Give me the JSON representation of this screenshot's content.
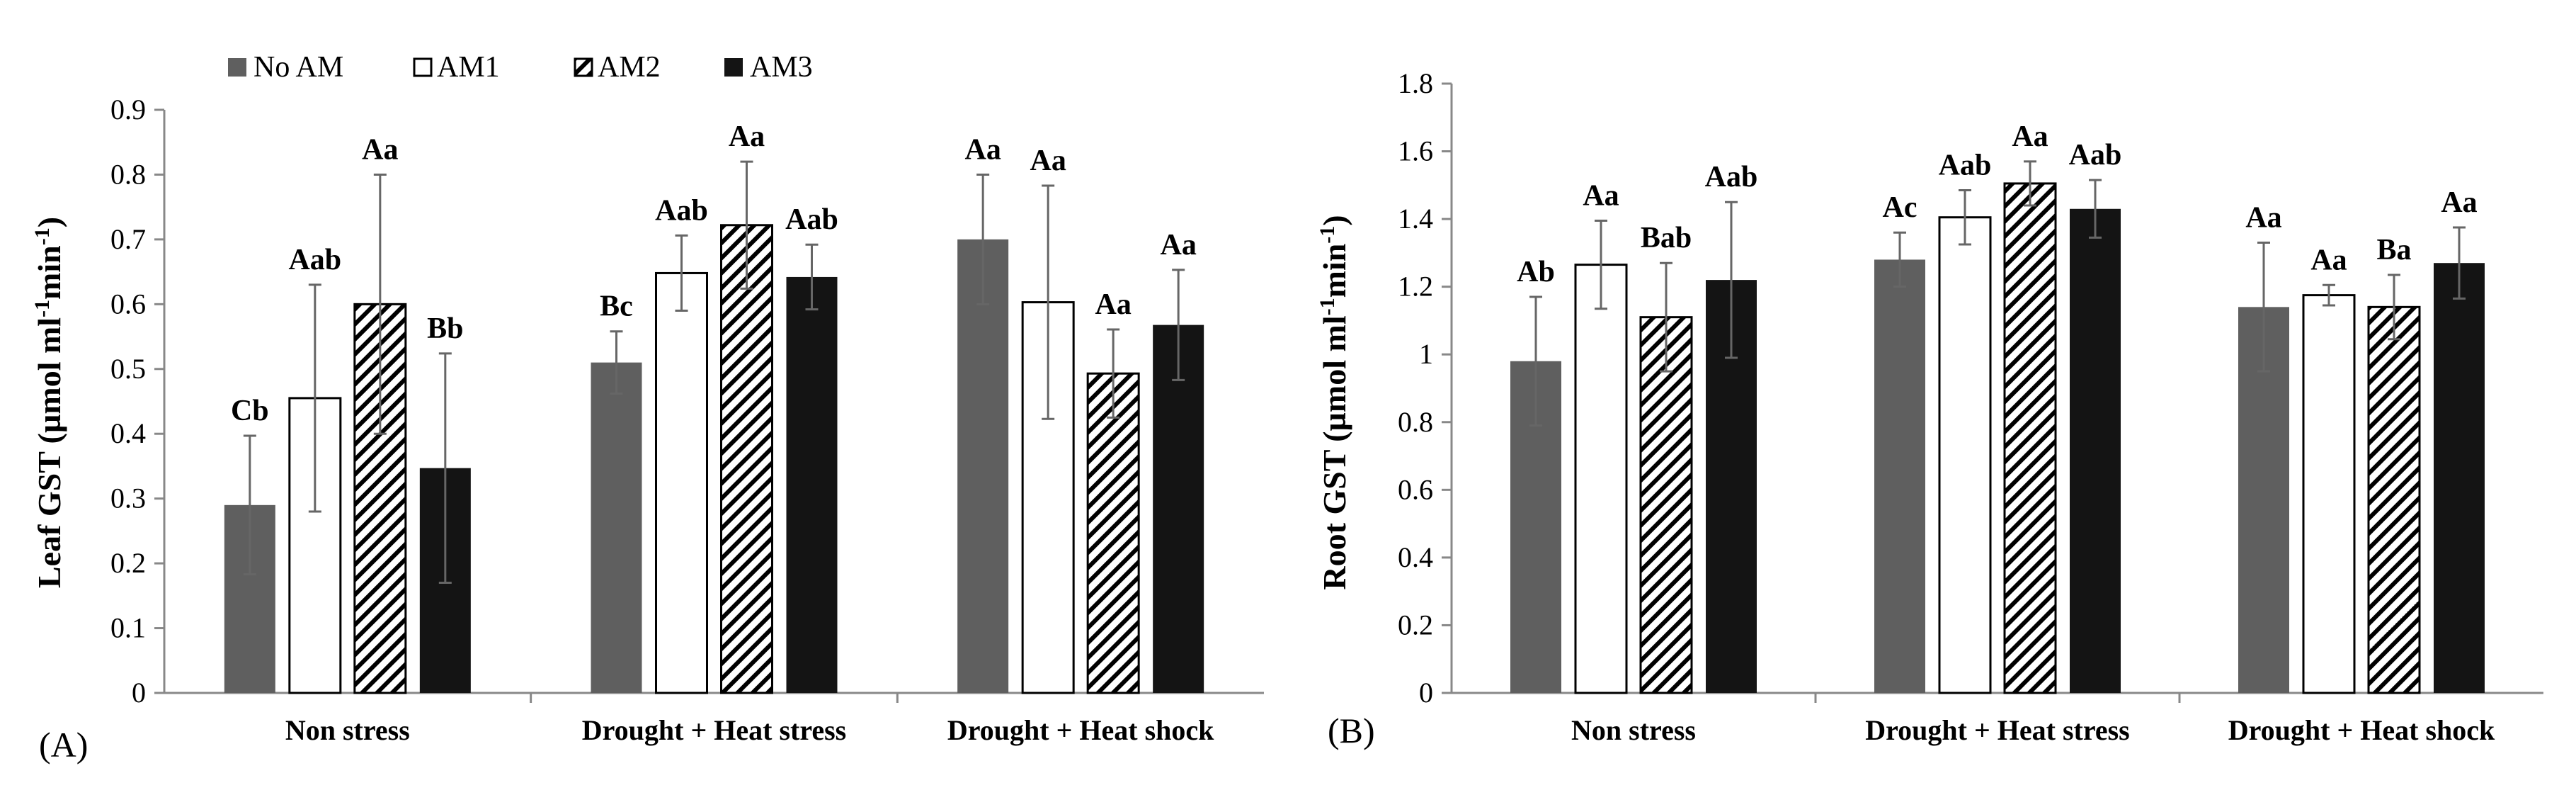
{
  "legend": {
    "items": [
      {
        "key": "noam",
        "label": "No AM"
      },
      {
        "key": "am1",
        "label": "AM1"
      },
      {
        "key": "am2",
        "label": "AM2"
      },
      {
        "key": "am3",
        "label": "AM3"
      }
    ]
  },
  "colors": {
    "noam": "#5f5f5f",
    "am1": "#ffffff",
    "am2_hatch": "#000000",
    "am3": "#141414",
    "axis": "#888888",
    "error_bar": "#666666"
  },
  "chart_data": [
    {
      "type": "bar",
      "panel_label": "(A)",
      "ylabel_main": "Leaf GST (µmol ml",
      "ylabel_sup1": "-1",
      "ylabel_mid": "min",
      "ylabel_sup2": "-1",
      "ylabel_end": ")",
      "ylim": [
        0,
        0.9
      ],
      "yticks": [
        0,
        0.1,
        0.2,
        0.3,
        0.4,
        0.5,
        0.6,
        0.7,
        0.8,
        0.9
      ],
      "ytick_labels": [
        "0",
        "0.1",
        "0.2",
        "0.3",
        "0.4",
        "0.5",
        "0.6",
        "0.7",
        "0.8",
        "0.9"
      ],
      "categories": [
        "Non stress",
        "Drought + Heat stress",
        "Drought + Heat shock"
      ],
      "series": [
        {
          "name": "No AM",
          "key": "noam",
          "values": [
            0.29,
            0.51,
            0.7
          ],
          "errors": [
            0.107,
            0.048,
            0.1
          ],
          "labels": [
            "Cb",
            "Bc",
            "Aa"
          ]
        },
        {
          "name": "AM1",
          "key": "am1",
          "values": [
            0.455,
            0.648,
            0.603
          ],
          "errors": [
            0.175,
            0.058,
            0.18
          ],
          "labels": [
            "Aab",
            "Aab",
            "Aa"
          ]
        },
        {
          "name": "AM2",
          "key": "am2",
          "values": [
            0.6,
            0.722,
            0.493
          ],
          "errors": [
            0.2,
            0.098,
            0.068
          ],
          "labels": [
            "Aa",
            "Aa",
            "Aa"
          ]
        },
        {
          "name": "AM3",
          "key": "am3",
          "values": [
            0.347,
            0.642,
            0.568
          ],
          "errors": [
            0.177,
            0.05,
            0.085
          ],
          "labels": [
            "Bb",
            "Aab",
            "Aa"
          ]
        }
      ]
    },
    {
      "type": "bar",
      "panel_label": "(B)",
      "ylabel_main": "Root GST (µmol ml",
      "ylabel_sup1": "-1",
      "ylabel_mid": "min",
      "ylabel_sup2": "-1",
      "ylabel_end": ")",
      "ylim": [
        0,
        1.8
      ],
      "yticks": [
        0,
        0.2,
        0.4,
        0.6,
        0.8,
        1,
        1.2,
        1.4,
        1.6,
        1.8
      ],
      "ytick_labels": [
        "0",
        "0.2",
        "0.4",
        "0.6",
        "0.8",
        "1",
        "1.2",
        "1.4",
        "1.6",
        "1.8"
      ],
      "categories": [
        "Non stress",
        "Drought + Heat stress",
        "Drought + Heat shock"
      ],
      "series": [
        {
          "name": "No AM",
          "key": "noam",
          "values": [
            0.98,
            1.28,
            1.14
          ],
          "errors": [
            0.19,
            0.08,
            0.19
          ],
          "labels": [
            "Ab",
            "Ac",
            "Aa"
          ]
        },
        {
          "name": "AM1",
          "key": "am1",
          "values": [
            1.265,
            1.405,
            1.175
          ],
          "errors": [
            0.13,
            0.08,
            0.03
          ],
          "labels": [
            "Aa",
            "Aab",
            "Aa"
          ]
        },
        {
          "name": "AM2",
          "key": "am2",
          "values": [
            1.11,
            1.505,
            1.14
          ],
          "errors": [
            0.16,
            0.065,
            0.095
          ],
          "labels": [
            "Bab",
            "Aa",
            "Ba"
          ]
        },
        {
          "name": "AM3",
          "key": "am3",
          "values": [
            1.22,
            1.43,
            1.27
          ],
          "errors": [
            0.23,
            0.085,
            0.105
          ],
          "labels": [
            "Aab",
            "Aab",
            "Aa"
          ]
        }
      ]
    }
  ]
}
